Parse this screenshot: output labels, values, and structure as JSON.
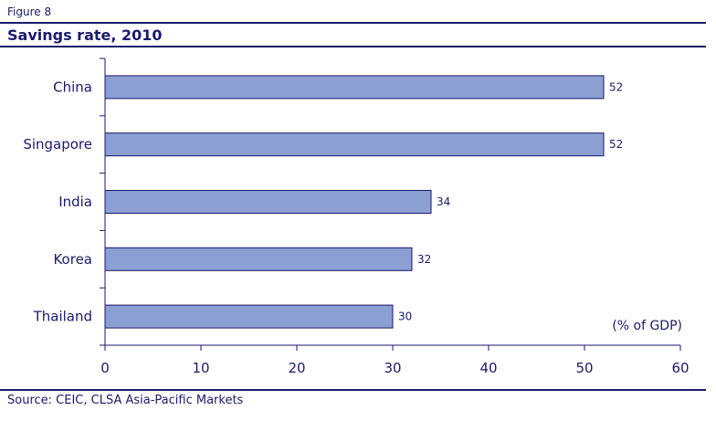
{
  "figure_label": "Figure 8",
  "source": "Source: CEIC, CLSA Asia-Pacific Markets",
  "chart_data": {
    "type": "bar",
    "orientation": "horizontal",
    "title": "Savings rate, 2010",
    "unit_label": "(% of GDP)",
    "categories": [
      "China",
      "Singapore",
      "India",
      "Korea",
      "Thailand"
    ],
    "values": [
      52,
      52,
      34,
      32,
      30
    ],
    "xlim": [
      0,
      60
    ],
    "xticks": [
      0,
      10,
      20,
      30,
      40,
      50,
      60
    ],
    "bar_color": "#8b9fd2",
    "bar_stroke": "#1a1a6e",
    "grid": false,
    "legend": "none"
  }
}
